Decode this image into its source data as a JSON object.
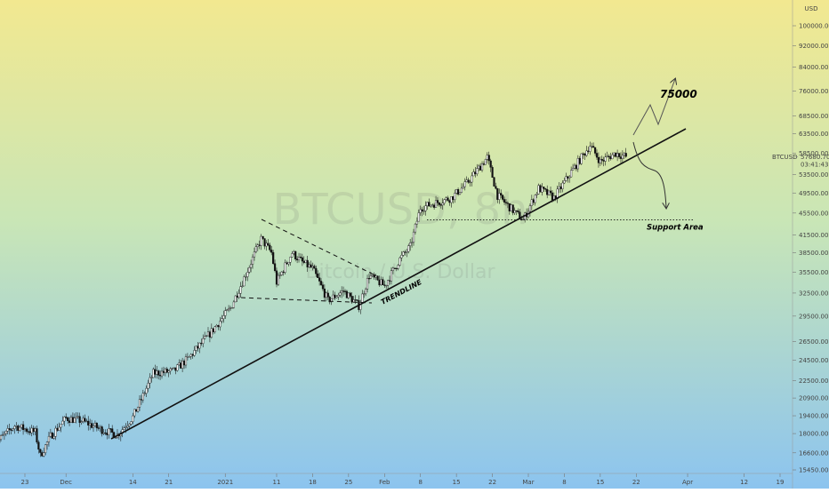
{
  "chart_data": {
    "type": "candlestick",
    "symbol": "BTCUSD",
    "watermark": {
      "symbol": "BTCUSD, 8h",
      "name": "Bitcoin / U.S. Dollar"
    },
    "price_axis": {
      "currency": "USD",
      "scale": "log",
      "ylim": [
        15450,
        105000
      ],
      "ticks": [
        100000,
        92000,
        84000,
        76000,
        68500,
        63500,
        58500,
        53500,
        49500,
        45500,
        41500,
        38500,
        35500,
        32500,
        29500,
        26500,
        24500,
        22500,
        20900,
        19400,
        18000,
        16600,
        15450
      ]
    },
    "time_axis": {
      "ticks": [
        {
          "label": "23",
          "date": "2020-11-23"
        },
        {
          "label": "Dec",
          "date": "2020-12-01"
        },
        {
          "label": "14",
          "date": "2020-12-14"
        },
        {
          "label": "21",
          "date": "2020-12-21"
        },
        {
          "label": "2021",
          "date": "2021-01-01"
        },
        {
          "label": "11",
          "date": "2021-01-11"
        },
        {
          "label": "18",
          "date": "2021-01-18"
        },
        {
          "label": "25",
          "date": "2021-01-25"
        },
        {
          "label": "Feb",
          "date": "2021-02-01"
        },
        {
          "label": "8",
          "date": "2021-02-08"
        },
        {
          "label": "15",
          "date": "2021-02-15"
        },
        {
          "label": "22",
          "date": "2021-02-22"
        },
        {
          "label": "Mar",
          "date": "2021-03-01"
        },
        {
          "label": "8",
          "date": "2021-03-08"
        },
        {
          "label": "15",
          "date": "2021-03-15"
        },
        {
          "label": "22",
          "date": "2021-03-22"
        },
        {
          "label": "Apr",
          "date": "2021-04-01"
        },
        {
          "label": "12",
          "date": "2021-04-12"
        },
        {
          "label": "19",
          "date": "2021-04-19"
        }
      ]
    },
    "last_price": {
      "price": 57680.7,
      "price_label": "57680.70",
      "countdown": "03:41:43"
    },
    "price_path": [
      {
        "date": "2020-11-17",
        "close": 17200
      },
      {
        "date": "2020-11-21",
        "close": 18600
      },
      {
        "date": "2020-11-25",
        "close": 18100
      },
      {
        "date": "2020-11-26",
        "close": 16400
      },
      {
        "date": "2020-11-28",
        "close": 17800
      },
      {
        "date": "2020-12-01",
        "close": 19200
      },
      {
        "date": "2020-12-04",
        "close": 19000
      },
      {
        "date": "2020-12-08",
        "close": 18300
      },
      {
        "date": "2020-12-11",
        "close": 17900
      },
      {
        "date": "2020-12-14",
        "close": 19300
      },
      {
        "date": "2020-12-16",
        "close": 21100
      },
      {
        "date": "2020-12-18",
        "close": 23200
      },
      {
        "date": "2020-12-22",
        "close": 23400
      },
      {
        "date": "2020-12-25",
        "close": 24800
      },
      {
        "date": "2020-12-29",
        "close": 27400
      },
      {
        "date": "2021-01-02",
        "close": 30500
      },
      {
        "date": "2021-01-04",
        "close": 33500
      },
      {
        "date": "2021-01-06",
        "close": 37000
      },
      {
        "date": "2021-01-08",
        "close": 40800
      },
      {
        "date": "2021-01-10",
        "close": 38500
      },
      {
        "date": "2021-01-11",
        "close": 34000
      },
      {
        "date": "2021-01-14",
        "close": 38500
      },
      {
        "date": "2021-01-16",
        "close": 37000
      },
      {
        "date": "2021-01-18",
        "close": 36000
      },
      {
        "date": "2021-01-21",
        "close": 31500
      },
      {
        "date": "2021-01-24",
        "close": 32800
      },
      {
        "date": "2021-01-27",
        "close": 30800
      },
      {
        "date": "2021-01-29",
        "close": 35000
      },
      {
        "date": "2021-02-01",
        "close": 33500
      },
      {
        "date": "2021-02-04",
        "close": 37500
      },
      {
        "date": "2021-02-06",
        "close": 39500
      },
      {
        "date": "2021-02-08",
        "close": 46500
      },
      {
        "date": "2021-02-11",
        "close": 47500
      },
      {
        "date": "2021-02-14",
        "close": 48500
      },
      {
        "date": "2021-02-17",
        "close": 51500
      },
      {
        "date": "2021-02-21",
        "close": 57500
      },
      {
        "date": "2021-02-23",
        "close": 49000
      },
      {
        "date": "2021-02-26",
        "close": 46000
      },
      {
        "date": "2021-02-28",
        "close": 44200
      },
      {
        "date": "2021-03-03",
        "close": 50500
      },
      {
        "date": "2021-03-06",
        "close": 48500
      },
      {
        "date": "2021-03-09",
        "close": 53500
      },
      {
        "date": "2021-03-13",
        "close": 60500
      },
      {
        "date": "2021-03-15",
        "close": 56500
      },
      {
        "date": "2021-03-18",
        "close": 58500
      },
      {
        "date": "2021-03-20",
        "close": 57680.7
      }
    ],
    "annotations": [
      {
        "text": "TRENDLINE",
        "type": "trendline"
      },
      {
        "text": "75000",
        "type": "target"
      },
      {
        "text": "Support Area",
        "type": "support"
      }
    ],
    "support_level": 44200,
    "target_level": 75000,
    "colors": {
      "bg_top": "#f2e890",
      "bg_mid": "#c9e6b6",
      "bg_bottom": "#8cc4ef",
      "candle_up": "#ffffff",
      "candle_down": "#111111",
      "line": "#000000",
      "axis_text": "#444444"
    }
  }
}
